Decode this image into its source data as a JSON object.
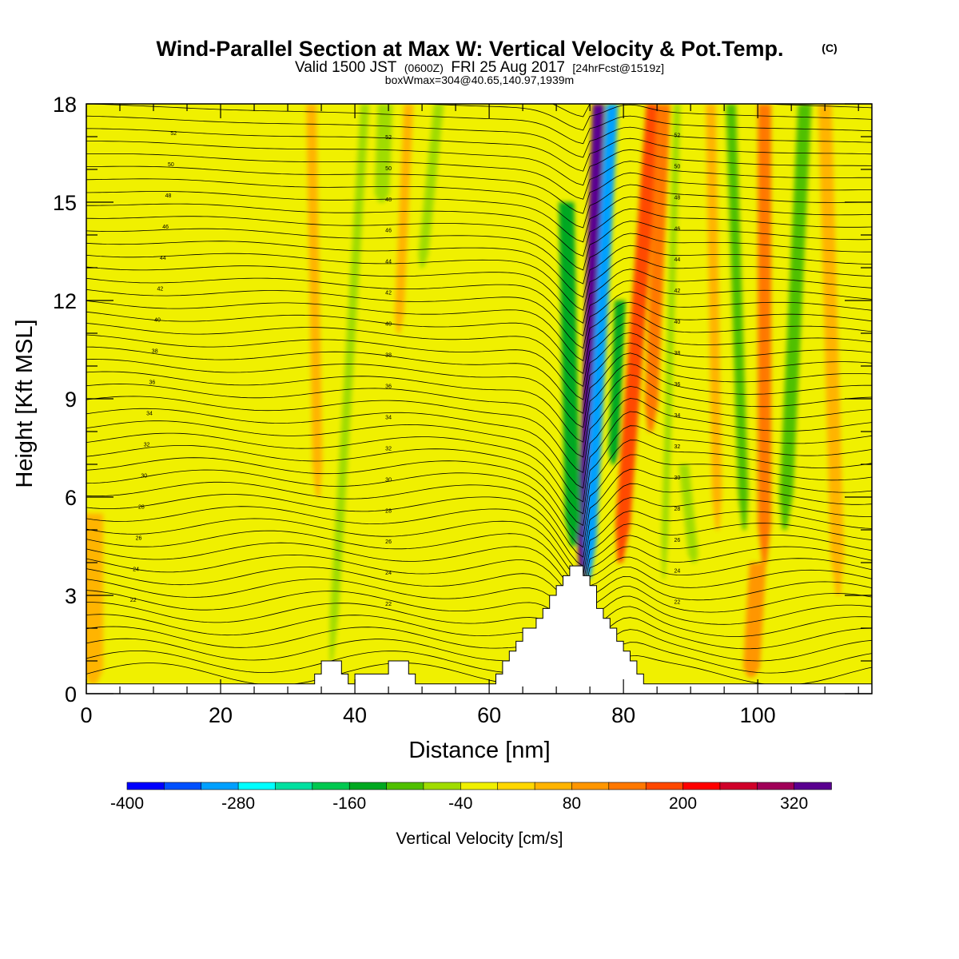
{
  "header": {
    "title_main": "Wind-Parallel Section at Max W: Vertical Velocity & Pot.Temp.",
    "title_mark": "(C)",
    "sub_valid": "Valid 1500 JST",
    "sub_utc": "(0600Z)",
    "sub_date": "FRI 25 Aug 2017",
    "sub_fcst": "[24hrFcst@1519z]",
    "box_info": "boxWmax=304@40.65,140.97,1939m"
  },
  "chart_data": {
    "type": "heatmap",
    "xlabel": "Distance [nm]",
    "ylabel": "Height [Kft MSL]",
    "xlim": [
      0,
      117
    ],
    "ylim": [
      0,
      18
    ],
    "x_ticks": [
      0,
      20,
      40,
      60,
      80,
      100
    ],
    "y_ticks": [
      0,
      3,
      6,
      9,
      12,
      15,
      18
    ],
    "colorbar": {
      "label": "Vertical Velocity [cm/s]",
      "min": -400,
      "max": 360,
      "step": 40,
      "tick_labels": [
        "-400",
        "-280",
        "-160",
        "-40",
        "80",
        "200",
        "320"
      ],
      "colors": [
        "#0000ff",
        "#0050ff",
        "#00a0ff",
        "#00ffff",
        "#00e0a0",
        "#00c850",
        "#00a820",
        "#50c000",
        "#a0dc00",
        "#f0f000",
        "#ffd700",
        "#ffb400",
        "#ff9600",
        "#ff7800",
        "#ff4800",
        "#ff0000",
        "#d0002a",
        "#a00058",
        "#5a0090"
      ]
    },
    "terrain_kft": [
      {
        "x": 0,
        "h": 0.3
      },
      {
        "x": 33,
        "h": 0.3
      },
      {
        "x": 34,
        "h": 0.6
      },
      {
        "x": 35,
        "h": 1.0
      },
      {
        "x": 37,
        "h": 1.0
      },
      {
        "x": 38,
        "h": 0.6
      },
      {
        "x": 39,
        "h": 0.3
      },
      {
        "x": 40,
        "h": 0.6
      },
      {
        "x": 44,
        "h": 0.6
      },
      {
        "x": 45,
        "h": 1.0
      },
      {
        "x": 47,
        "h": 1.0
      },
      {
        "x": 48,
        "h": 0.6
      },
      {
        "x": 49,
        "h": 0.3
      },
      {
        "x": 60,
        "h": 0.3
      },
      {
        "x": 61,
        "h": 0.6
      },
      {
        "x": 62,
        "h": 1.0
      },
      {
        "x": 63,
        "h": 1.3
      },
      {
        "x": 64,
        "h": 1.6
      },
      {
        "x": 65,
        "h": 2.0
      },
      {
        "x": 67,
        "h": 2.3
      },
      {
        "x": 68,
        "h": 2.6
      },
      {
        "x": 69,
        "h": 3.0
      },
      {
        "x": 70,
        "h": 3.3
      },
      {
        "x": 71,
        "h": 3.6
      },
      {
        "x": 72,
        "h": 3.9
      },
      {
        "x": 73,
        "h": 3.9
      },
      {
        "x": 74,
        "h": 3.6
      },
      {
        "x": 75,
        "h": 3.3
      },
      {
        "x": 76,
        "h": 2.6
      },
      {
        "x": 77,
        "h": 2.3
      },
      {
        "x": 78,
        "h": 2.0
      },
      {
        "x": 79,
        "h": 1.6
      },
      {
        "x": 80,
        "h": 1.3
      },
      {
        "x": 81,
        "h": 1.0
      },
      {
        "x": 82,
        "h": 0.6
      },
      {
        "x": 83,
        "h": 0.3
      },
      {
        "x": 117,
        "h": 0.3
      }
    ],
    "plumes": [
      {
        "name": "main-updraft",
        "x0": 73.8,
        "x1": 76.3,
        "h0": 3.5,
        "h1": 18,
        "w": 1.8,
        "value": 360
      },
      {
        "name": "main-downdraft",
        "x0": 74.8,
        "x1": 78.3,
        "h0": 3.5,
        "h1": 18,
        "w": 1.8,
        "value": -300
      },
      {
        "name": "downdraft-west",
        "x0": 72.5,
        "x1": 71.5,
        "h0": 4.5,
        "h1": 15,
        "w": 2.3,
        "value": -140
      },
      {
        "name": "downdraft-east",
        "x0": 78.5,
        "x1": 79.5,
        "h0": 7,
        "h1": 12,
        "w": 1.6,
        "value": -140
      },
      {
        "name": "updraft-east",
        "x0": 79.5,
        "x1": 84.5,
        "h0": 4,
        "h1": 18,
        "w": 2.2,
        "value": 180
      },
      {
        "name": "updraft-east-2",
        "x0": 84,
        "x1": 86,
        "h0": 8,
        "h1": 18,
        "w": 2.0,
        "value": 120
      },
      {
        "name": "green-band-38",
        "x0": 36.5,
        "x1": 41.5,
        "h0": 1,
        "h1": 18,
        "w": 1.3,
        "value": -80
      },
      {
        "name": "green-band-44",
        "x0": 44,
        "x1": 44.5,
        "h0": 15,
        "h1": 18,
        "w": 2.2,
        "value": -60
      },
      {
        "name": "green-band-52",
        "x0": 50,
        "x1": 52.5,
        "h0": 13,
        "h1": 18,
        "w": 1.5,
        "value": -80
      },
      {
        "name": "green-band-85",
        "x0": 86,
        "x1": 88,
        "h0": 3.5,
        "h1": 18,
        "w": 1.0,
        "value": -60
      },
      {
        "name": "green-band-90",
        "x0": 90.5,
        "x1": 89,
        "h0": 4,
        "h1": 7,
        "w": 1.5,
        "value": -60
      },
      {
        "name": "green-band-97",
        "x0": 98,
        "x1": 96,
        "h0": 5,
        "h1": 18,
        "w": 1.5,
        "value": -90
      },
      {
        "name": "green-band-104",
        "x0": 104,
        "x1": 107,
        "h0": 5,
        "h1": 18,
        "w": 2.0,
        "value": -110
      },
      {
        "name": "orange-band-35",
        "x0": 34.5,
        "x1": 33.5,
        "h0": 6,
        "h1": 18,
        "w": 1.5,
        "value": 40
      },
      {
        "name": "orange-band-47",
        "x0": 46.5,
        "x1": 48,
        "h0": 11,
        "h1": 18,
        "w": 1.4,
        "value": 40
      },
      {
        "name": "orange-band-94",
        "x0": 94,
        "x1": 93,
        "h0": 5,
        "h1": 18,
        "w": 1.5,
        "value": 60
      },
      {
        "name": "orange-band-101",
        "x0": 101,
        "x1": 101,
        "h0": 4,
        "h1": 18,
        "w": 2.0,
        "value": 120
      },
      {
        "name": "orange-band-112",
        "x0": 112,
        "x1": 110,
        "h0": 3,
        "h1": 18,
        "w": 2.0,
        "value": 60
      },
      {
        "name": "orange-blob-w",
        "x0": 1,
        "x1": 1,
        "h0": 0.3,
        "h1": 5.5,
        "w": 3.0,
        "value": 40
      },
      {
        "name": "orange-blob-100",
        "x0": 99,
        "x1": 100,
        "h0": 0.5,
        "h1": 4.0,
        "w": 2.5,
        "value": 80
      }
    ],
    "isentropes": {
      "start": 28,
      "step": 0.5,
      "count": 52,
      "label_rows": [
        "52",
        "50",
        "48",
        "46",
        "44",
        "42",
        "40",
        "38",
        "36",
        "34",
        "32",
        "30",
        "28",
        "26",
        "24",
        "22"
      ]
    }
  }
}
